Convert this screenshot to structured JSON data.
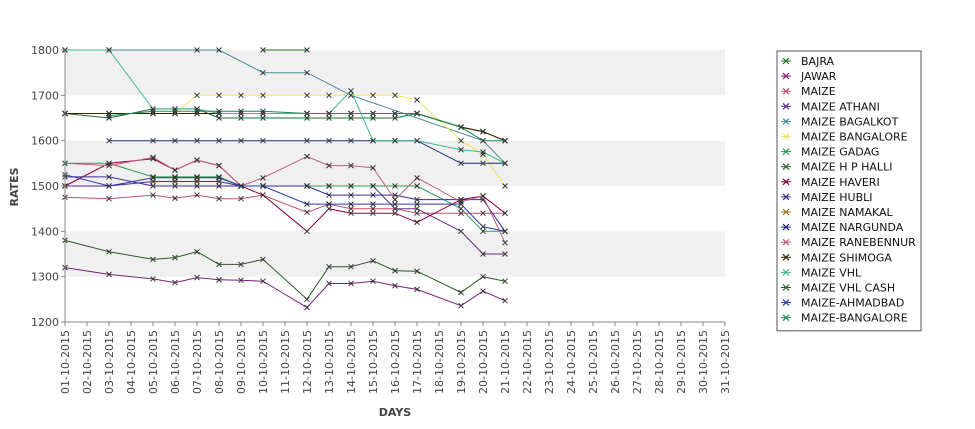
{
  "chart_data": {
    "type": "line",
    "xlabel": "DAYS",
    "ylabel": "RATES",
    "ylim": [
      1200,
      1800
    ],
    "yticks": [
      1200,
      1300,
      1400,
      1500,
      1600,
      1700,
      1800
    ],
    "grid": "horizontal bands",
    "legend_position": "right",
    "categories": [
      "01-10-2015",
      "02-10-2015",
      "03-10-2015",
      "04-10-2015",
      "05-10-2015",
      "06-10-2015",
      "07-10-2015",
      "08-10-2015",
      "09-10-2015",
      "10-10-2015",
      "11-10-2015",
      "12-10-2015",
      "13-10-2015",
      "14-10-2015",
      "15-10-2015",
      "16-10-2015",
      "17-10-2015",
      "18-10-2015",
      "19-10-2015",
      "20-10-2015",
      "21-10-2015",
      "22-10-2015",
      "23-10-2015",
      "24-10-2015",
      "25-10-2015",
      "26-10-2015",
      "27-10-2015",
      "28-10-2015",
      "29-10-2015",
      "30-10-2015",
      "31-10-2015"
    ],
    "series": [
      {
        "name": "BAJRA",
        "color": "#1f7a1f",
        "values": [
          null,
          null,
          null,
          null,
          null,
          null,
          null,
          null,
          null,
          1800,
          null,
          1800,
          null,
          null,
          null,
          null,
          null,
          null,
          null,
          null,
          null,
          null,
          null,
          null,
          null,
          null,
          null,
          null,
          null,
          null,
          null
        ]
      },
      {
        "name": "JAWAR",
        "color": "#7a1f7a",
        "values": [
          1320,
          null,
          1305,
          null,
          1295,
          1287,
          1298,
          1293,
          1292,
          1290,
          null,
          1232,
          1285,
          1285,
          1290,
          1280,
          1272,
          null,
          1236,
          1268,
          1247,
          null,
          null,
          null,
          null,
          null,
          null,
          null,
          null,
          null,
          null
        ]
      },
      {
        "name": "MAIZE",
        "color": "#c0506a",
        "values": [
          1475,
          null,
          1472,
          null,
          1480,
          1473,
          1480,
          1472,
          1472,
          1480,
          null,
          1442,
          1460,
          1450,
          1450,
          1450,
          1440,
          null,
          1440,
          1440,
          1440,
          null,
          null,
          null,
          null,
          null,
          null,
          null,
          null,
          null,
          null
        ]
      },
      {
        "name": "MAIZE ATHANI",
        "color": "#5a2a8a",
        "values": [
          1500,
          null,
          1500,
          null,
          1510,
          1510,
          1510,
          1510,
          1500,
          1500,
          null,
          1500,
          1500,
          1500,
          1500,
          1450,
          1450,
          null,
          1400,
          1350,
          1350,
          null,
          null,
          null,
          null,
          null,
          null,
          null,
          null,
          null,
          null
        ]
      },
      {
        "name": "MAIZE BAGALKOT",
        "color": "#4a8a9a",
        "values": [
          1800,
          null,
          1800,
          null,
          null,
          null,
          1800,
          1800,
          null,
          1750,
          null,
          1750,
          null,
          1700,
          null,
          null,
          null,
          null,
          null,
          1600,
          1550,
          null,
          null,
          null,
          null,
          null,
          null,
          null,
          null,
          null,
          null
        ]
      },
      {
        "name": "MAIZE BANGALORE",
        "color": "#e8e860",
        "values": [
          1660,
          null,
          1660,
          null,
          1660,
          1660,
          1700,
          1700,
          1700,
          1700,
          null,
          1700,
          1700,
          1700,
          1700,
          1700,
          1690,
          null,
          1600,
          1570,
          1500,
          null,
          null,
          null,
          null,
          null,
          null,
          null,
          null,
          null,
          null
        ]
      },
      {
        "name": "MAIZE GADAG",
        "color": "#2a9a5a",
        "values": [
          1550,
          null,
          1550,
          null,
          1520,
          1520,
          1520,
          1520,
          1500,
          1500,
          null,
          1500,
          1500,
          1500,
          1500,
          1500,
          1500,
          null,
          1450,
          1400,
          1400,
          null,
          null,
          null,
          null,
          null,
          null,
          null,
          null,
          null,
          null
        ]
      },
      {
        "name": "MAIZE H P HALLI",
        "color": "#2a6a2a",
        "values": [
          1660,
          null,
          1650,
          null,
          1670,
          1670,
          1670,
          1650,
          1650,
          1650,
          null,
          1650,
          1650,
          1650,
          1650,
          1650,
          1660,
          null,
          1630,
          1620,
          1600,
          null,
          null,
          null,
          null,
          null,
          null,
          null,
          null,
          null,
          null
        ]
      },
      {
        "name": "MAIZE HAVERI",
        "color": "#8a0040",
        "values": [
          1500,
          null,
          1550,
          null,
          1560,
          1535,
          1557,
          1545,
          1500,
          1480,
          null,
          1400,
          1450,
          1440,
          1440,
          1440,
          1420,
          null,
          1470,
          1478,
          1440,
          null,
          null,
          null,
          null,
          null,
          null,
          null,
          null,
          null,
          null
        ]
      },
      {
        "name": "MAIZE HUBLI",
        "color": "#3a2a9a",
        "values": [
          1520,
          null,
          1520,
          null,
          1500,
          1500,
          1500,
          1500,
          1500,
          1500,
          null,
          1500,
          1480,
          1480,
          1480,
          1480,
          1470,
          null,
          1470,
          1470,
          1400,
          null,
          null,
          null,
          null,
          null,
          null,
          null,
          null,
          null,
          null
        ]
      },
      {
        "name": "MAIZE NAMAKAL",
        "color": "#9a7a20",
        "values": [
          1660,
          null,
          1660,
          null,
          1660,
          1660,
          1660,
          1660,
          1660,
          1660,
          null,
          1660,
          1660,
          1660,
          1660,
          1660,
          1660,
          null,
          1630,
          1620,
          1600,
          null,
          null,
          null,
          null,
          null,
          null,
          null,
          null,
          null,
          null
        ]
      },
      {
        "name": "MAIZE NARGUNDA",
        "color": "#1a2a7a",
        "values": [
          null,
          null,
          1600,
          null,
          1600,
          1600,
          1600,
          1600,
          1600,
          1600,
          null,
          1600,
          1600,
          1600,
          1600,
          1600,
          1600,
          null,
          1550,
          1550,
          1550,
          null,
          null,
          null,
          null,
          null,
          null,
          null,
          null,
          null,
          null
        ]
      },
      {
        "name": "MAIZE RANEBENNUR",
        "color": "#c06080",
        "values": [
          1550,
          null,
          1545,
          null,
          1563,
          1535,
          1557,
          1545,
          1500,
          1518,
          null,
          1565,
          1545,
          1545,
          1540,
          1470,
          1518,
          null,
          1465,
          1478,
          1375,
          null,
          null,
          null,
          null,
          null,
          null,
          null,
          null,
          null,
          null
        ]
      },
      {
        "name": "MAIZE SHIMOGA",
        "color": "#2a2a00",
        "values": [
          1660,
          null,
          1660,
          null,
          1660,
          1660,
          1660,
          1660,
          1660,
          1660,
          null,
          1660,
          1660,
          1660,
          1660,
          1660,
          1660,
          null,
          1630,
          1620,
          1600,
          null,
          null,
          null,
          null,
          null,
          null,
          null,
          null,
          null,
          null
        ]
      },
      {
        "name": "MAIZE VHL",
        "color": "#40b890",
        "values": [
          1800,
          null,
          1800,
          null,
          1670,
          1670,
          1670,
          1660,
          1660,
          1660,
          null,
          1660,
          1660,
          1710,
          1600,
          1600,
          1600,
          null,
          1580,
          1575,
          1550,
          null,
          null,
          null,
          null,
          null,
          null,
          null,
          null,
          null,
          null
        ]
      },
      {
        "name": "MAIZE VHL CASH",
        "color": "#2a5a2a",
        "values": [
          1380,
          null,
          1355,
          null,
          1338,
          1342,
          1355,
          1327,
          1327,
          1338,
          null,
          1250,
          1322,
          1322,
          1335,
          1313,
          1312,
          null,
          1265,
          1300,
          1290,
          null,
          null,
          null,
          null,
          null,
          null,
          null,
          null,
          null,
          null
        ]
      },
      {
        "name": "MAIZE-AHMADBAD",
        "color": "#2a3aaa",
        "values": [
          1525,
          null,
          1500,
          null,
          1518,
          1518,
          1518,
          1518,
          1500,
          1500,
          null,
          1460,
          1460,
          1460,
          1460,
          1460,
          1460,
          null,
          1460,
          1410,
          1400,
          null,
          null,
          null,
          null,
          null,
          null,
          null,
          null,
          null,
          null
        ]
      },
      {
        "name": "MAIZE-BANGALORE",
        "color": "#1a8a5a",
        "values": [
          null,
          null,
          1655,
          null,
          1665,
          1665,
          1665,
          1665,
          1665,
          1665,
          null,
          1660,
          1660,
          1660,
          1660,
          1660,
          1660,
          null,
          1630,
          1600,
          1600,
          null,
          null,
          null,
          null,
          null,
          null,
          null,
          null,
          null,
          null
        ]
      }
    ]
  }
}
